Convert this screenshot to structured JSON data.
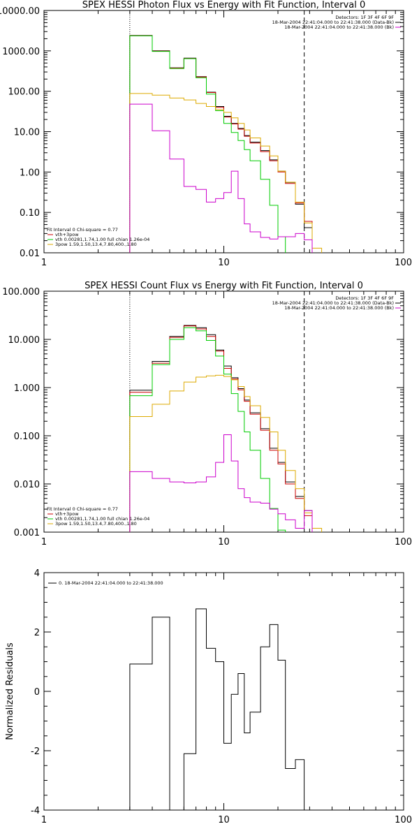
{
  "chart_data": [
    {
      "type": "line",
      "title": "SPEX HESSI Photon Flux vs Energy with Fit Function, Interval 0",
      "x_scale": "log",
      "y_scale": "log",
      "xlim": [
        1,
        100
      ],
      "ylim": [
        0.01,
        10000
      ],
      "x_ticks": [
        1,
        10,
        100
      ],
      "x_tick_labels": [
        "1",
        "10",
        "100"
      ],
      "y_ticks": [
        0.01,
        0.1,
        1,
        10,
        100,
        1000,
        10000
      ],
      "y_tick_labels": [
        "0.01",
        "0.10",
        "1.00",
        "10.00",
        "100.00",
        "1000.00",
        "10000.00"
      ],
      "vlines": [
        {
          "x": 3.0,
          "style": "dotted"
        },
        {
          "x": 28.0,
          "style": "dashed"
        }
      ],
      "legend_top": [
        {
          "text": "Detectors: 1F 3F 4F 6F 9F",
          "color": ""
        },
        {
          "text": "18-Mar-2004 22:41:04.000 to 22:41:38.000 (Data-Bk)",
          "color": "#000000"
        },
        {
          "text": "18-Mar-2004 22:41:04.000 to 22:41:38.000 (Bk)",
          "color": "#cc00cc"
        }
      ],
      "legend_bottom": [
        {
          "text": "Fit Interval 0   Chi-square = 0.77",
          "color": ""
        },
        {
          "text": "vth+3pow",
          "color": "#cc0000"
        },
        {
          "text": "vth 0.00281,1.74,1.00  full chian 1.26e-04",
          "color": "#00cc00"
        },
        {
          "text": "3pow 1.59,1.50,13.4,7.80,400.,1.80",
          "color": "#ddaa00"
        }
      ],
      "edges": [
        3.0,
        4.0,
        5.0,
        6.0,
        7.0,
        8.0,
        9.0,
        10.0,
        11.0,
        12.0,
        13.0,
        14.0,
        16.0,
        18.0,
        20.0,
        22.0,
        25.0,
        28.0,
        31.0,
        35.0
      ],
      "series": [
        {
          "color": "#000000",
          "values": [
            2400,
            1000,
            380,
            660,
            230,
            95,
            42,
            24,
            16,
            12,
            8.0,
            5.5,
            3.4,
            2.0,
            1.05,
            0.55,
            0.16,
            0.042,
            null
          ]
        },
        {
          "color": "#cc0000",
          "values": [
            2380,
            980,
            375,
            650,
            225,
            93,
            40,
            23,
            15.5,
            11.5,
            7.7,
            5.2,
            3.2,
            1.9,
            1.0,
            0.52,
            0.17,
            0.06,
            null
          ]
        },
        {
          "color": "#00cc00",
          "values": [
            2370,
            970,
            365,
            640,
            215,
            85,
            33,
            16,
            9.5,
            6.0,
            3.6,
            1.9,
            0.66,
            0.15,
            0.025,
            null,
            null,
            null,
            null
          ]
        },
        {
          "color": "#ddaa00",
          "values": [
            88,
            80,
            68,
            61,
            50,
            42,
            35,
            30,
            22,
            16,
            11,
            7.0,
            4.4,
            2.5,
            1.05,
            0.56,
            0.18,
            0.055,
            0.013
          ]
        },
        {
          "color": "#cc00cc",
          "values": [
            48,
            10.5,
            2.1,
            0.44,
            0.37,
            0.18,
            0.22,
            0.31,
            1.05,
            0.22,
            0.052,
            0.033,
            0.024,
            0.022,
            0.025,
            0.025,
            0.03,
            0.021,
            null
          ]
        }
      ]
    },
    {
      "type": "line",
      "title": "SPEX HESSI Count Flux vs Energy with Fit Function, Interval 0",
      "x_scale": "log",
      "y_scale": "log",
      "xlim": [
        1,
        100
      ],
      "ylim": [
        0.001,
        100
      ],
      "x_ticks": [
        1,
        10,
        100
      ],
      "x_tick_labels": [
        "1",
        "10",
        "100"
      ],
      "y_ticks": [
        0.001,
        0.01,
        0.1,
        1,
        10,
        100
      ],
      "y_tick_labels": [
        "0.001",
        "0.010",
        "0.100",
        "1.000",
        "10.000",
        "100.000"
      ],
      "vlines": [
        {
          "x": 3.0,
          "style": "dotted"
        },
        {
          "x": 28.0,
          "style": "dashed"
        }
      ],
      "legend_top": [
        {
          "text": "Detectors: 1F 3F 4F 6F 9F",
          "color": ""
        },
        {
          "text": "18-Mar-2004 22:41:04.000 to 22:41:38.000 (Data-Bk)",
          "color": "#000000"
        },
        {
          "text": "18-Mar-2004 22:41:04.000 to 22:41:38.000 (Bk)",
          "color": "#cc00cc"
        }
      ],
      "legend_bottom": [
        {
          "text": "Fit Interval 0   Chi-square = 0.77",
          "color": ""
        },
        {
          "text": "vth+3pow",
          "color": "#cc0000"
        },
        {
          "text": "vth 0.00281,1.74,1.00  full chian 1.26e-04",
          "color": "#00cc00"
        },
        {
          "text": "3pow 1.59,1.50,13.4,7.80,400.,1.80",
          "color": "#ddaa00"
        }
      ],
      "edges": [
        3.0,
        4.0,
        5.0,
        6.0,
        7.0,
        8.0,
        9.0,
        10.0,
        11.0,
        12.0,
        13.0,
        14.0,
        16.0,
        18.0,
        20.0,
        22.0,
        25.0,
        28.0,
        31.0,
        35.0
      ],
      "series": [
        {
          "color": "#000000",
          "values": [
            0.88,
            3.5,
            11.5,
            19.5,
            17.5,
            12.5,
            6.0,
            2.8,
            1.6,
            0.95,
            0.55,
            0.3,
            0.14,
            0.055,
            0.028,
            0.011,
            0.0055,
            0.0028,
            null
          ]
        },
        {
          "color": "#cc0000",
          "values": [
            0.8,
            3.2,
            11.0,
            19.0,
            16.5,
            11.5,
            5.7,
            2.5,
            1.5,
            0.9,
            0.52,
            0.28,
            0.13,
            0.05,
            0.026,
            0.01,
            0.005,
            0.0022,
            null
          ]
        },
        {
          "color": "#00cc00",
          "values": [
            0.68,
            3.0,
            10.0,
            17.5,
            15.0,
            9.5,
            4.5,
            1.9,
            0.75,
            0.32,
            0.12,
            0.05,
            0.013,
            0.0031,
            0.0011,
            null,
            null,
            null,
            null
          ]
        },
        {
          "color": "#ddaa00",
          "values": [
            0.25,
            0.45,
            0.85,
            1.3,
            1.65,
            1.75,
            1.8,
            1.7,
            1.45,
            1.05,
            0.65,
            0.42,
            0.24,
            0.12,
            0.05,
            0.019,
            0.008,
            0.0025,
            0.0012
          ]
        },
        {
          "color": "#cc00cc",
          "values": [
            0.018,
            0.013,
            0.011,
            0.0105,
            0.011,
            0.014,
            0.028,
            0.105,
            0.03,
            0.008,
            0.0052,
            0.0042,
            0.004,
            0.003,
            0.0024,
            0.0018,
            0.0012,
            0.0028,
            null
          ]
        }
      ]
    },
    {
      "type": "line",
      "title": "",
      "ylabel": "Normalized Residuals",
      "x_scale": "log",
      "y_scale": "linear",
      "xlim": [
        1,
        100
      ],
      "ylim": [
        -4,
        4
      ],
      "x_ticks": [
        1,
        10,
        100
      ],
      "x_tick_labels": [
        "1",
        "10",
        "100"
      ],
      "y_ticks": [
        -4,
        -2,
        0,
        2,
        4
      ],
      "y_tick_labels": [
        "-4",
        "-2",
        "0",
        "2",
        "4"
      ],
      "vlines": [],
      "legend_top": [],
      "legend_bottom": [],
      "legend_left": [
        {
          "text": "0. 18-Mar-2004 22:41:04.000 to 22:41:38.000",
          "color": "#000000"
        }
      ],
      "edges": [
        3.0,
        4.0,
        5.0,
        6.0,
        7.0,
        8.0,
        9.0,
        10.0,
        11.0,
        12.0,
        13.0,
        14.0,
        16.0,
        18.0,
        20.0,
        22.0,
        25.0,
        28.0
      ],
      "series": [
        {
          "color": "#000000",
          "values": [
            0.92,
            2.5,
            -4.05,
            -2.1,
            2.78,
            1.45,
            1.0,
            -1.75,
            -0.1,
            0.6,
            -1.4,
            -0.7,
            1.5,
            2.25,
            1.05,
            -2.6,
            -2.3
          ]
        }
      ]
    }
  ]
}
